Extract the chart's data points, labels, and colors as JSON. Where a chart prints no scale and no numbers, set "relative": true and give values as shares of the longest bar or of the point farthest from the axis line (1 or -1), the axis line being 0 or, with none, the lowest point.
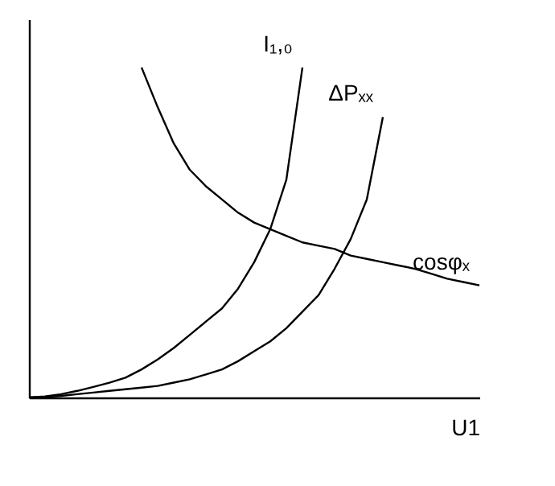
{
  "chart_data": {
    "type": "line",
    "relative": true,
    "xlabel": "U1",
    "categories": [
      null,
      null,
      null,
      null,
      null,
      null,
      null,
      null,
      null,
      null,
      null,
      null,
      null,
      null,
      null,
      null,
      null,
      null,
      null,
      null,
      null,
      null,
      null,
      null,
      null,
      null,
      null,
      null,
      null
    ],
    "tick_labels": false,
    "grid": false,
    "marker": "none",
    "line_style": "solid",
    "series": [
      {
        "name": "I₁,₀",
        "color": "#000000",
        "values": [
          0,
          0.003,
          0.01,
          0.02,
          0.032,
          0.045,
          0.06,
          0.085,
          0.115,
          0.15,
          0.19,
          0.23,
          0.27,
          0.33,
          0.41,
          0.51,
          0.66,
          1.0,
          null,
          null,
          null,
          null,
          null,
          null,
          null,
          null,
          null,
          null,
          null
        ]
      },
      {
        "name": "ΔPₓₓ",
        "color": "#000000",
        "values": [
          0,
          0.002,
          0.005,
          0.01,
          0.015,
          0.02,
          0.025,
          0.03,
          0.035,
          0.045,
          0.055,
          0.07,
          0.085,
          0.11,
          0.14,
          0.17,
          0.21,
          0.26,
          0.31,
          0.39,
          0.48,
          0.6,
          0.85,
          null,
          null,
          null,
          null,
          null,
          null
        ]
      },
      {
        "name": "cosφₓ",
        "color": "#000000",
        "values": [
          null,
          null,
          null,
          null,
          null,
          null,
          null,
          1.0,
          0.88,
          0.77,
          0.69,
          0.64,
          0.6,
          0.56,
          0.53,
          0.51,
          0.49,
          0.47,
          0.46,
          0.45,
          0.43,
          0.42,
          0.41,
          0.4,
          0.39,
          0.375,
          0.36,
          0.35,
          0.34
        ]
      }
    ]
  }
}
